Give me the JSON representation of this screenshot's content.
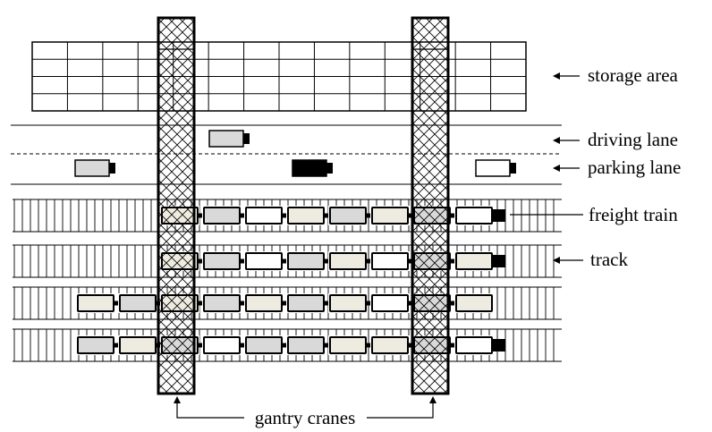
{
  "labels": {
    "storage_area": "storage area",
    "driving_lane": "driving lane",
    "parking_lane": "parking lane",
    "freight_train": "freight train",
    "track": "track",
    "gantry_cranes": "gantry cranes"
  },
  "colors": {
    "light_gray": "#d9d9d9",
    "beige": "#eeece1",
    "white": "#ffffff",
    "black": "#000000"
  },
  "storage_grid": {
    "columns": 14,
    "rows": 4
  },
  "tracks": [
    {
      "wagons": [
        "beige",
        "gray",
        "white",
        "beige",
        "gray",
        "beige",
        "gray",
        "white"
      ],
      "locomotive": true
    },
    {
      "wagons": [
        "beige",
        "gray",
        "white",
        "gray",
        "beige",
        "white",
        "gray",
        "beige"
      ],
      "locomotive": true
    },
    {
      "wagons": [
        "beige",
        "gray",
        "beige",
        "gray",
        "beige",
        "gray",
        "beige",
        "white",
        "gray",
        "beige"
      ],
      "locomotive": false
    },
    {
      "wagons": [
        "gray",
        "beige",
        "gray",
        "white",
        "gray",
        "gray",
        "beige",
        "beige",
        "gray",
        "white"
      ],
      "locomotive": true
    }
  ],
  "vehicles": [
    {
      "lane": "driving",
      "color": "gray"
    },
    {
      "lane": "parking",
      "color": "gray"
    },
    {
      "lane": "parking",
      "color": "black"
    },
    {
      "lane": "parking",
      "color": "white"
    }
  ]
}
